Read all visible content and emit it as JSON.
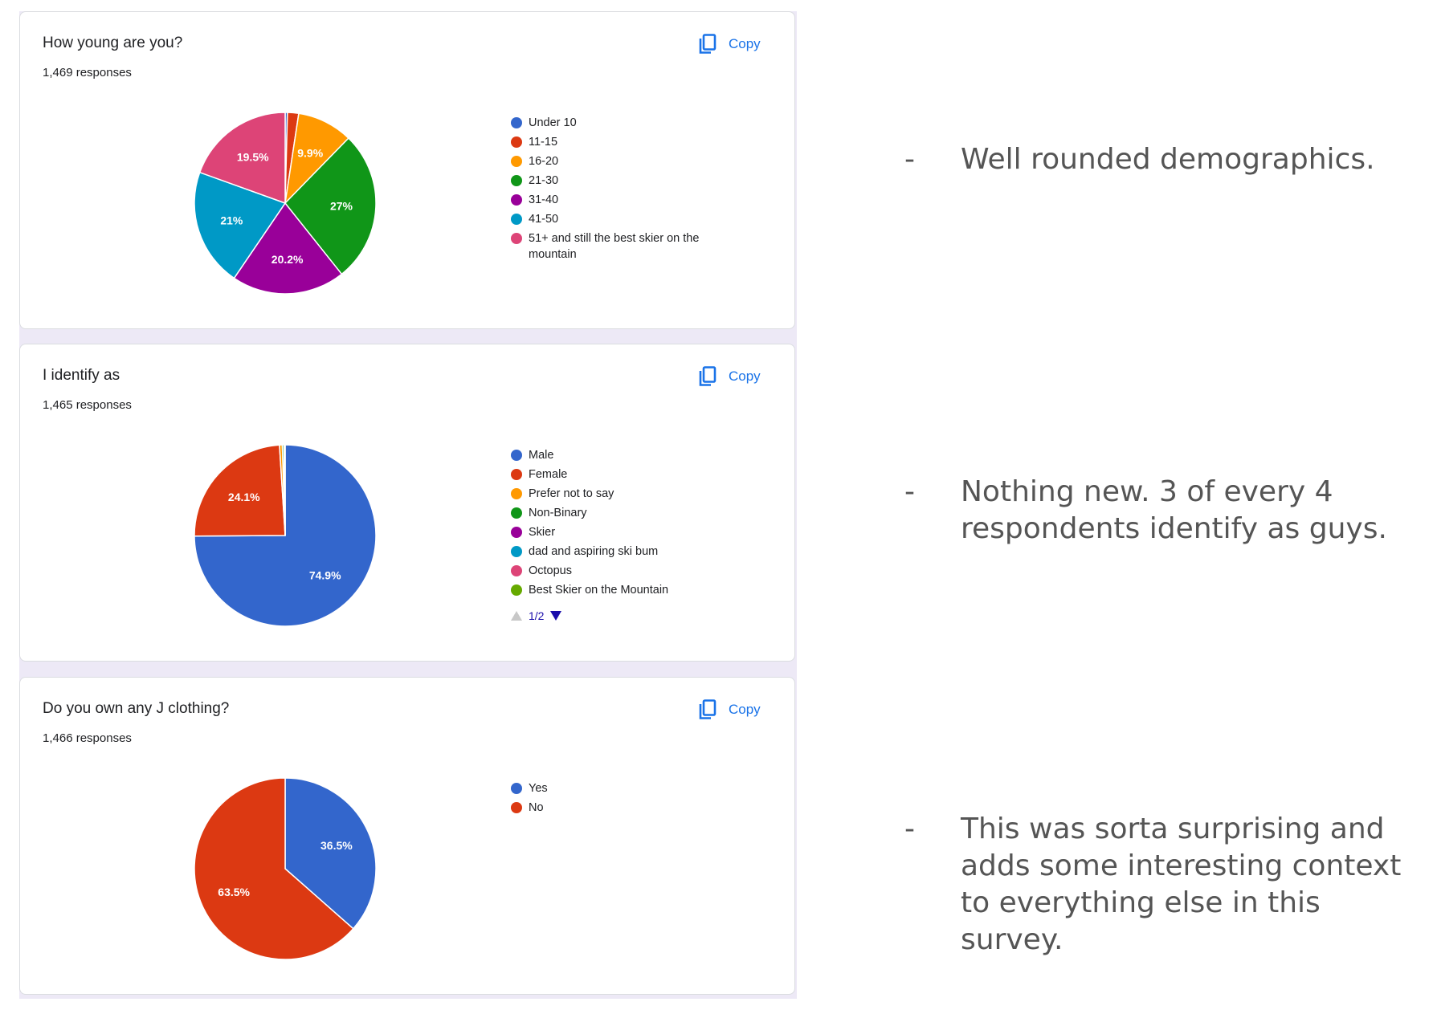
{
  "copy_label": "Copy",
  "colors": {
    "copy_blue": "#1a73e8",
    "pager_blue": "#1a0dab"
  },
  "cards": [
    {
      "title": "How young are you?",
      "responses": "1,469 responses",
      "chart_data": {
        "type": "pie",
        "categories": [
          "Under 10",
          "11-15",
          "16-20",
          "21-30",
          "31-40",
          "41-50",
          "51+ and still the best skier on the mountain"
        ],
        "values": [
          0.4,
          2.0,
          9.9,
          27.0,
          20.2,
          21.0,
          19.5
        ],
        "slice_labels": [
          "",
          "",
          "9.9%",
          "27%",
          "20.2%",
          "21%",
          "19.5%"
        ],
        "colors": [
          "#3366cc",
          "#dc3912",
          "#ff9900",
          "#109618",
          "#990099",
          "#0099c6",
          "#dd4477"
        ],
        "legend_position": "right"
      }
    },
    {
      "title": "I identify as",
      "responses": "1,465 responses",
      "pager": "1/2",
      "chart_data": {
        "type": "pie",
        "categories": [
          "Male",
          "Female",
          "Prefer not to say",
          "Non-Binary",
          "Skier",
          "dad and aspiring ski bum",
          "Octopus",
          "Best Skier on the Mountain"
        ],
        "values": [
          74.9,
          24.1,
          0.5,
          0.3,
          0.1,
          0.04,
          0.03,
          0.03
        ],
        "slice_labels": [
          "74.9%",
          "24.1%",
          "",
          "",
          "",
          "",
          "",
          ""
        ],
        "colors": [
          "#3366cc",
          "#dc3912",
          "#ff9900",
          "#109618",
          "#990099",
          "#0099c6",
          "#dd4477",
          "#66aa00"
        ],
        "legend_position": "right"
      }
    },
    {
      "title": "Do you own any J clothing?",
      "responses": "1,466 responses",
      "chart_data": {
        "type": "pie",
        "categories": [
          "Yes",
          "No"
        ],
        "values": [
          36.5,
          63.5
        ],
        "slice_labels": [
          "36.5%",
          "63.5%"
        ],
        "colors": [
          "#3366cc",
          "#dc3912"
        ],
        "legend_position": "right"
      }
    }
  ],
  "notes": [
    {
      "dash": "-",
      "text": "Well rounded demographics."
    },
    {
      "dash": "-",
      "text": "Nothing new. 3 of every 4 respondents identify as guys."
    },
    {
      "dash": "-",
      "text": "This was sorta surprising and adds some interesting context to everything else in this survey."
    }
  ]
}
